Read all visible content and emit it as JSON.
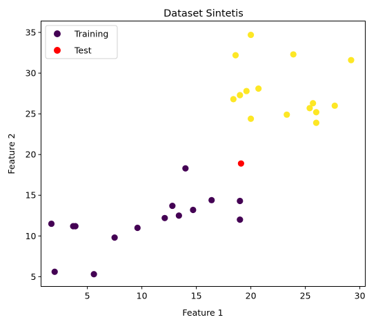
{
  "chart_data": {
    "type": "scatter",
    "title": "Dataset Sintetis",
    "xlabel": "Feature 1",
    "ylabel": "Feature 2",
    "xlim": [
      0.75,
      30.5
    ],
    "ylim": [
      3.8,
      36.4
    ],
    "xticks": [
      5,
      10,
      15,
      20,
      25,
      30
    ],
    "yticks": [
      5,
      10,
      15,
      20,
      25,
      30,
      35
    ],
    "grid": false,
    "legend_position": "top-left",
    "series": [
      {
        "name": "Training",
        "color": "#440154",
        "points": [
          [
            1.7,
            11.5
          ],
          [
            2.0,
            5.6
          ],
          [
            3.7,
            11.2
          ],
          [
            3.9,
            11.2
          ],
          [
            5.6,
            5.3
          ],
          [
            7.5,
            9.8
          ],
          [
            9.6,
            11.0
          ],
          [
            12.1,
            12.2
          ],
          [
            12.8,
            13.7
          ],
          [
            13.4,
            12.5
          ],
          [
            14.0,
            18.3
          ],
          [
            14.7,
            13.2
          ],
          [
            16.4,
            14.4
          ],
          [
            19.0,
            14.3
          ],
          [
            19.0,
            12.0
          ]
        ]
      },
      {
        "name": "",
        "color": "#fde725",
        "points": [
          [
            18.4,
            26.8
          ],
          [
            18.6,
            32.2
          ],
          [
            19.0,
            27.3
          ],
          [
            19.6,
            27.8
          ],
          [
            20.0,
            34.7
          ],
          [
            20.0,
            24.4
          ],
          [
            20.7,
            28.1
          ],
          [
            23.3,
            24.9
          ],
          [
            23.9,
            32.3
          ],
          [
            25.4,
            25.7
          ],
          [
            25.7,
            26.3
          ],
          [
            26.0,
            25.2
          ],
          [
            26.0,
            23.9
          ],
          [
            27.7,
            26.0
          ],
          [
            29.2,
            31.6
          ]
        ]
      },
      {
        "name": "Test",
        "color": "#ff0000",
        "points": [
          [
            19.1,
            18.9
          ]
        ]
      }
    ],
    "legend": [
      {
        "label": "Training",
        "color": "#440154"
      },
      {
        "label": "Test",
        "color": "#ff0000"
      }
    ]
  }
}
